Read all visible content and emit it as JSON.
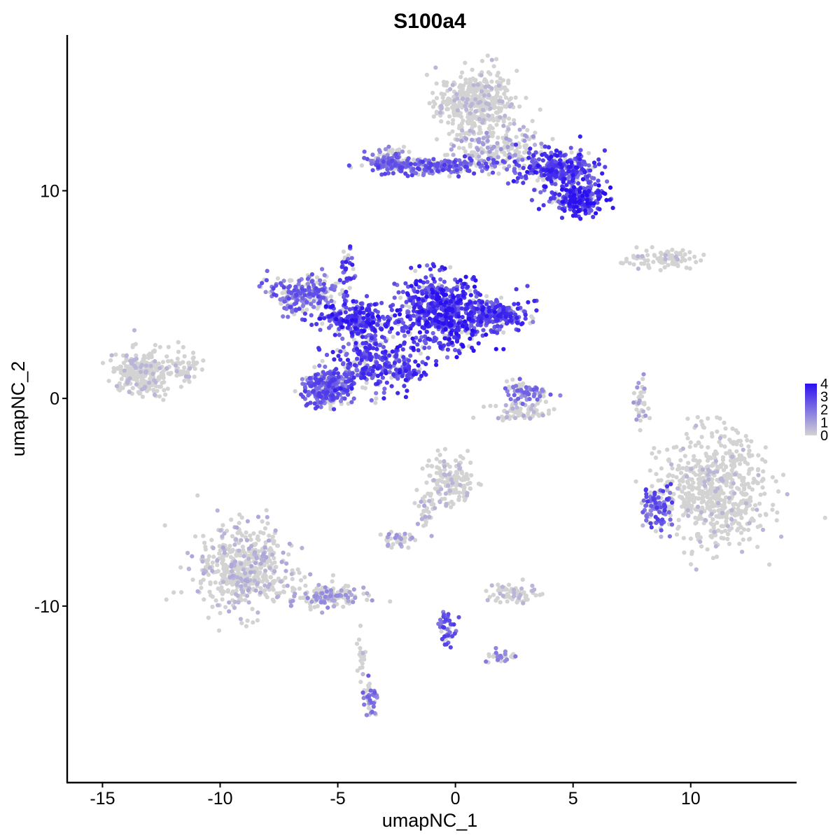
{
  "chart_data": {
    "type": "scatter",
    "title": "S100a4",
    "xlabel": "umapNC_1",
    "ylabel": "umapNC_2",
    "xlim": [
      -16.5,
      14.5
    ],
    "ylim": [
      -18.5,
      17.5
    ],
    "x_ticks": [
      -15,
      -10,
      -5,
      0,
      5,
      10
    ],
    "x_tick_labels": [
      "-15",
      "-10",
      "-5",
      "0",
      "5",
      "10"
    ],
    "y_ticks": [
      -10,
      0,
      10
    ],
    "y_tick_labels": [
      "-10",
      "0",
      "10"
    ],
    "grid": false,
    "legend": {
      "position": "right",
      "type": "colorbar",
      "min": 0,
      "max": 4,
      "ticks": [
        "0",
        "1",
        "2",
        "3",
        "4"
      ],
      "low_color": "#d3d3d3",
      "high_color": "#2a10f0"
    },
    "clusters": [
      {
        "name": "top-right-head",
        "cx": 0.9,
        "cy": 14.2,
        "rx": 1.5,
        "ry": 1.4,
        "n": 420,
        "expr": 0.1
      },
      {
        "name": "top-right-stem",
        "cx": 1.8,
        "cy": 12.0,
        "rx": 1.8,
        "ry": 0.8,
        "n": 180,
        "expr": 0.3
      },
      {
        "name": "top-right-arm",
        "cx": 4.3,
        "cy": 11.0,
        "rx": 1.5,
        "ry": 0.9,
        "n": 340,
        "expr": 0.85
      },
      {
        "name": "top-right-blob",
        "cx": 5.2,
        "cy": 9.5,
        "rx": 1.0,
        "ry": 0.6,
        "n": 220,
        "expr": 0.9
      },
      {
        "name": "top-streak",
        "cx": -0.8,
        "cy": 11.2,
        "rx": 2.5,
        "ry": 0.35,
        "n": 240,
        "expr": 0.7
      },
      {
        "name": "top-left-knob",
        "cx": -2.8,
        "cy": 11.5,
        "rx": 0.8,
        "ry": 0.45,
        "n": 120,
        "expr": 0.6
      },
      {
        "name": "central-body",
        "cx": -0.5,
        "cy": 4.2,
        "rx": 1.7,
        "ry": 1.6,
        "n": 620,
        "expr": 0.9
      },
      {
        "name": "central-right-arm",
        "cx": 1.8,
        "cy": 4.0,
        "rx": 1.2,
        "ry": 0.6,
        "n": 200,
        "expr": 0.8
      },
      {
        "name": "central-left-arm",
        "cx": -6.5,
        "cy": 5.0,
        "rx": 1.3,
        "ry": 0.9,
        "n": 230,
        "expr": 0.65
      },
      {
        "name": "central-bridge",
        "cx": -4.0,
        "cy": 3.8,
        "rx": 1.5,
        "ry": 0.7,
        "n": 240,
        "expr": 0.9
      },
      {
        "name": "central-loop",
        "cx": -5.5,
        "cy": 0.5,
        "rx": 0.9,
        "ry": 0.7,
        "n": 300,
        "expr": 0.7
      },
      {
        "name": "central-stem",
        "cx": -3.5,
        "cy": 1.8,
        "rx": 1.4,
        "ry": 1.3,
        "n": 280,
        "expr": 0.8
      },
      {
        "name": "central-spike",
        "cx": -4.6,
        "cy": 6.2,
        "rx": 0.3,
        "ry": 1.2,
        "n": 40,
        "expr": 0.8
      },
      {
        "name": "central-tail",
        "cx": -2.3,
        "cy": 1.3,
        "rx": 0.9,
        "ry": 0.4,
        "n": 60,
        "expr": 0.85
      },
      {
        "name": "small-right-mid",
        "cx": 3.0,
        "cy": 0.3,
        "rx": 0.8,
        "ry": 0.5,
        "n": 80,
        "expr": 0.55
      },
      {
        "name": "small-right-low",
        "cx": 2.8,
        "cy": -0.6,
        "rx": 1.2,
        "ry": 0.35,
        "n": 70,
        "expr": 0.2
      },
      {
        "name": "left-cluster",
        "cx": -13.3,
        "cy": 1.2,
        "rx": 1.1,
        "ry": 1.0,
        "n": 260,
        "expr": 0.12
      },
      {
        "name": "left-cluster-tail",
        "cx": -11.5,
        "cy": 1.6,
        "rx": 0.7,
        "ry": 0.7,
        "n": 50,
        "expr": 0.15
      },
      {
        "name": "far-right-strip",
        "cx": 9.0,
        "cy": 6.7,
        "rx": 1.5,
        "ry": 0.35,
        "n": 90,
        "expr": 0.05
      },
      {
        "name": "right-big",
        "cx": 11.0,
        "cy": -4.5,
        "rx": 2.0,
        "ry": 2.5,
        "n": 650,
        "expr": 0.1
      },
      {
        "name": "right-big-edge",
        "cx": 8.6,
        "cy": -5.2,
        "rx": 0.5,
        "ry": 0.9,
        "n": 100,
        "expr": 0.7
      },
      {
        "name": "right-thin",
        "cx": 7.9,
        "cy": -0.3,
        "rx": 0.3,
        "ry": 1.1,
        "n": 35,
        "expr": 0.3
      },
      {
        "name": "bottom-left-head",
        "cx": -9.0,
        "cy": -8.2,
        "rx": 1.8,
        "ry": 1.8,
        "n": 520,
        "expr": 0.2
      },
      {
        "name": "bottom-left-arm",
        "cx": -5.5,
        "cy": -9.5,
        "rx": 1.5,
        "ry": 0.5,
        "n": 160,
        "expr": 0.35
      },
      {
        "name": "bottom-left-tail",
        "cx": -3.6,
        "cy": -14.5,
        "rx": 0.3,
        "ry": 0.9,
        "n": 45,
        "expr": 0.55
      },
      {
        "name": "bottom-left-stem",
        "cx": -4.0,
        "cy": -12.3,
        "rx": 0.15,
        "ry": 1.2,
        "n": 20,
        "expr": 0.2
      },
      {
        "name": "mid-bottom-head",
        "cx": -0.2,
        "cy": -4.0,
        "rx": 0.9,
        "ry": 1.1,
        "n": 160,
        "expr": 0.15
      },
      {
        "name": "mid-bottom-small",
        "cx": -2.4,
        "cy": -6.8,
        "rx": 0.6,
        "ry": 0.35,
        "n": 45,
        "expr": 0.3
      },
      {
        "name": "mid-bottom-stem",
        "cx": -1.2,
        "cy": -5.5,
        "rx": 0.4,
        "ry": 0.9,
        "n": 30,
        "expr": 0.2
      },
      {
        "name": "lower-center-small",
        "cx": 2.5,
        "cy": -9.4,
        "rx": 0.8,
        "ry": 0.45,
        "n": 70,
        "expr": 0.15
      },
      {
        "name": "lower-center-trail",
        "cx": -0.4,
        "cy": -11.2,
        "rx": 0.3,
        "ry": 1.0,
        "n": 45,
        "expr": 0.75
      },
      {
        "name": "lower-right-trail",
        "cx": 2.0,
        "cy": -12.5,
        "rx": 0.7,
        "ry": 0.3,
        "n": 30,
        "expr": 0.5
      }
    ]
  }
}
